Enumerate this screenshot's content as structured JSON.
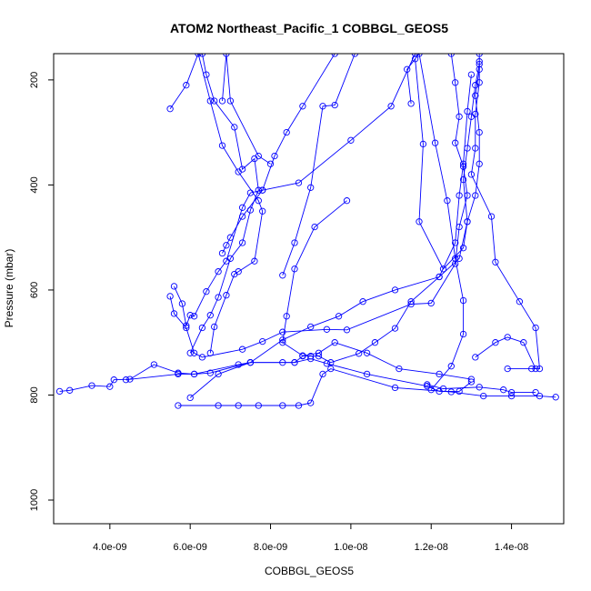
{
  "chart_data": {
    "type": "line",
    "title": "ATOM2 Northeast_Pacific_1 COBBGL_GEOS5",
    "xlabel": "COBBGL_GEOS5",
    "ylabel": "Pressure (mbar)",
    "xlim": [
      2.6e-09,
      1.53e-08
    ],
    "ylim": [
      1045,
      150
    ],
    "y_reversed": true,
    "x_ticks": [
      4e-09,
      6e-09,
      8e-09,
      1e-08,
      1.2e-08,
      1.4e-08
    ],
    "x_tick_labels": [
      "4.0e-09",
      "6.0e-09",
      "8.0e-09",
      "1.0e-08",
      "1.2e-08",
      "1.4e-08"
    ],
    "y_ticks": [
      200,
      400,
      600,
      800,
      1000
    ],
    "y_tick_labels": [
      "200",
      "400",
      "600",
      "800",
      "1000"
    ],
    "series_color": "#0000ff",
    "marker": "open-circle",
    "series": [
      {
        "points": [
          [
            2.75e-09,
            793
          ],
          [
            3e-09,
            791
          ],
          [
            3.55e-09,
            782
          ],
          [
            4e-09,
            784
          ],
          [
            4.1e-09,
            771
          ],
          [
            4.5e-09,
            770
          ],
          [
            5.1e-09,
            742
          ],
          [
            5.7e-09,
            758
          ],
          [
            6.1e-09,
            760
          ],
          [
            6.5e-09,
            758
          ],
          [
            7.5e-09,
            738
          ],
          [
            8.6e-09,
            738
          ],
          [
            9e-09,
            731
          ],
          [
            9.4e-09,
            740
          ],
          [
            1.04e-08,
            760
          ],
          [
            1.19e-08,
            783
          ],
          [
            1.22e-08,
            793
          ],
          [
            1.27e-08,
            793
          ],
          [
            1.3e-08,
            775
          ]
        ]
      },
      {
        "points": [
          [
            5.7e-09,
            820
          ],
          [
            6.7e-09,
            820
          ],
          [
            7.2e-09,
            820
          ],
          [
            7.7e-09,
            820
          ],
          [
            8.3e-09,
            820
          ],
          [
            8.7e-09,
            820
          ],
          [
            9e-09,
            815
          ],
          [
            9.3e-09,
            760
          ],
          [
            9.5e-09,
            750
          ],
          [
            1.11e-08,
            786
          ],
          [
            1.25e-08,
            794
          ],
          [
            1.33e-08,
            802
          ],
          [
            1.4e-08,
            802
          ],
          [
            1.47e-08,
            802
          ],
          [
            1.51e-08,
            804
          ]
        ]
      },
      {
        "points": [
          [
            4.4e-09,
            771
          ],
          [
            5.7e-09,
            760
          ],
          [
            6.1e-09,
            760
          ],
          [
            7.2e-09,
            742
          ],
          [
            7.5e-09,
            738
          ],
          [
            8.3e-09,
            738
          ],
          [
            8.6e-09,
            738
          ],
          [
            8.8e-09,
            726
          ],
          [
            9e-09,
            726
          ],
          [
            9.2e-09,
            726
          ],
          [
            9.5e-09,
            738
          ],
          [
            1.02e-08,
            721
          ],
          [
            1.06e-08,
            700
          ],
          [
            1.11e-08,
            673
          ],
          [
            1.15e-08,
            622
          ],
          [
            1.22e-08,
            575
          ],
          [
            1.26e-08,
            510
          ],
          [
            1.27e-08,
            420
          ],
          [
            1.28e-08,
            360
          ],
          [
            1.29e-08,
            260
          ],
          [
            1.3e-08,
            190
          ]
        ]
      },
      {
        "points": [
          [
            6e-09,
            805
          ],
          [
            6.7e-09,
            760
          ],
          [
            7.5e-09,
            738
          ],
          [
            8.3e-09,
            695
          ],
          [
            9e-09,
            670
          ],
          [
            9.7e-09,
            650
          ],
          [
            1.03e-08,
            622
          ],
          [
            1.11e-08,
            600
          ],
          [
            1.22e-08,
            575
          ],
          [
            1.27e-08,
            540
          ],
          [
            1.29e-08,
            470
          ],
          [
            1.28e-08,
            390
          ],
          [
            1.29e-08,
            330
          ],
          [
            1.3e-08,
            270
          ],
          [
            1.31e-08,
            210
          ],
          [
            1.32e-08,
            170
          ]
        ]
      },
      {
        "points": [
          [
            1.39e-08,
            750
          ],
          [
            1.45e-08,
            750
          ],
          [
            1.47e-08,
            750
          ],
          [
            1.46e-08,
            672
          ],
          [
            1.42e-08,
            622
          ],
          [
            1.36e-08,
            547
          ],
          [
            1.35e-08,
            460
          ],
          [
            1.3e-08,
            380
          ],
          [
            1.31e-08,
            330
          ],
          [
            1.31e-08,
            265
          ],
          [
            1.32e-08,
            205
          ],
          [
            1.32e-08,
            165
          ]
        ]
      },
      {
        "points": [
          [
            1.31e-08,
            728
          ],
          [
            1.36e-08,
            700
          ],
          [
            1.39e-08,
            690
          ],
          [
            1.43e-08,
            700
          ],
          [
            1.46e-08,
            750
          ]
        ]
      },
      {
        "points": [
          [
            1.19e-08,
            780
          ],
          [
            1.23e-08,
            788
          ],
          [
            1.32e-08,
            785
          ],
          [
            1.38e-08,
            790
          ],
          [
            1.4e-08,
            795
          ],
          [
            1.46e-08,
            795
          ]
        ]
      },
      {
        "points": [
          [
            5.5e-09,
            612
          ],
          [
            5.6e-09,
            645
          ],
          [
            5.9e-09,
            672
          ],
          [
            6.1e-09,
            720
          ],
          [
            6.3e-09,
            728
          ],
          [
            7.3e-09,
            713
          ],
          [
            7.8e-09,
            698
          ],
          [
            8.3e-09,
            680
          ],
          [
            9.4e-09,
            675
          ],
          [
            9.9e-09,
            676
          ],
          [
            1.15e-08,
            627
          ],
          [
            1.2e-08,
            625
          ],
          [
            1.26e-08,
            550
          ],
          [
            1.27e-08,
            480
          ],
          [
            1.29e-08,
            420
          ],
          [
            1.28e-08,
            365
          ],
          [
            1.26e-08,
            320
          ],
          [
            1.27e-08,
            270
          ],
          [
            1.26e-08,
            205
          ],
          [
            1.25e-08,
            150
          ]
        ]
      },
      {
        "points": [
          [
            5.6e-09,
            593
          ],
          [
            5.8e-09,
            626
          ],
          [
            5.9e-09,
            668
          ],
          [
            6e-09,
            648
          ],
          [
            6.1e-09,
            650
          ],
          [
            6.4e-09,
            603
          ],
          [
            6.7e-09,
            565
          ],
          [
            6.9e-09,
            545
          ],
          [
            7.3e-09,
            443
          ],
          [
            7.5e-09,
            415
          ],
          [
            7.8e-09,
            410
          ],
          [
            8.7e-09,
            396
          ],
          [
            1e-08,
            315
          ],
          [
            1.1e-08,
            250
          ],
          [
            1.16e-08,
            150
          ]
        ]
      },
      {
        "points": [
          [
            6e-09,
            720
          ],
          [
            6.3e-09,
            672
          ],
          [
            6.5e-09,
            648
          ],
          [
            6.7e-09,
            614
          ],
          [
            7e-09,
            540
          ],
          [
            7.3e-09,
            510
          ],
          [
            7.5e-09,
            448
          ],
          [
            7.7e-09,
            410
          ],
          [
            7.6e-09,
            350
          ],
          [
            7.3e-09,
            370
          ],
          [
            7.1e-09,
            290
          ],
          [
            6.6e-09,
            240
          ],
          [
            6.4e-09,
            190
          ],
          [
            6.3e-09,
            150
          ]
        ]
      },
      {
        "points": [
          [
            5.5e-09,
            255
          ],
          [
            5.9e-09,
            210
          ],
          [
            6.2e-09,
            150
          ],
          [
            6.5e-09,
            240
          ],
          [
            6.8e-09,
            325
          ],
          [
            7.2e-09,
            375
          ],
          [
            7.7e-09,
            430
          ],
          [
            7.8e-09,
            450
          ],
          [
            7.6e-09,
            545
          ],
          [
            7.2e-09,
            565
          ],
          [
            7.1e-09,
            570
          ],
          [
            6.9e-09,
            610
          ],
          [
            6.6e-09,
            670
          ],
          [
            6.5e-09,
            720
          ]
        ]
      },
      {
        "points": [
          [
            6.8e-09,
            530
          ],
          [
            6.9e-09,
            515
          ],
          [
            7e-09,
            500
          ],
          [
            7.3e-09,
            460
          ],
          [
            7.8e-09,
            410
          ],
          [
            8.1e-09,
            345
          ],
          [
            8.4e-09,
            300
          ],
          [
            8.8e-09,
            250
          ],
          [
            9.6e-09,
            150
          ]
        ]
      },
      {
        "points": [
          [
            6.8e-09,
            240
          ],
          [
            6.9e-09,
            150
          ],
          [
            7e-09,
            240
          ],
          [
            7.7e-09,
            345
          ],
          [
            8e-09,
            360
          ]
        ]
      },
      {
        "points": [
          [
            8.3e-09,
            572
          ],
          [
            8.6e-09,
            510
          ],
          [
            9e-09,
            405
          ],
          [
            9.3e-09,
            250
          ],
          [
            9.6e-09,
            248
          ],
          [
            1.01e-08,
            150
          ]
        ]
      },
      {
        "points": [
          [
            1.16e-08,
            160
          ],
          [
            1.18e-08,
            322
          ],
          [
            1.17e-08,
            470
          ],
          [
            1.23e-08,
            560
          ],
          [
            1.28e-08,
            520
          ],
          [
            1.29e-08,
            470
          ],
          [
            1.31e-08,
            420
          ],
          [
            1.32e-08,
            360
          ],
          [
            1.32e-08,
            300
          ],
          [
            1.31e-08,
            230
          ],
          [
            1.32e-08,
            180
          ],
          [
            1.32e-08,
            150
          ]
        ]
      },
      {
        "points": [
          [
            1.15e-08,
            245
          ],
          [
            1.14e-08,
            180
          ],
          [
            1.17e-08,
            150
          ],
          [
            1.21e-08,
            320
          ],
          [
            1.24e-08,
            430
          ],
          [
            1.26e-08,
            540
          ],
          [
            1.28e-08,
            620
          ],
          [
            1.28e-08,
            684
          ],
          [
            1.25e-08,
            745
          ],
          [
            1.2e-08,
            790
          ]
        ]
      },
      {
        "points": [
          [
            9.9e-09,
            430
          ],
          [
            9.1e-09,
            480
          ],
          [
            8.6e-09,
            560
          ],
          [
            8.4e-09,
            650
          ],
          [
            8.3e-09,
            700
          ],
          [
            8.8e-09,
            725
          ],
          [
            9.2e-09,
            720
          ],
          [
            9.6e-09,
            700
          ],
          [
            1.04e-08,
            720
          ],
          [
            1.12e-08,
            750
          ],
          [
            1.22e-08,
            760
          ],
          [
            1.3e-08,
            770
          ]
        ]
      }
    ]
  }
}
